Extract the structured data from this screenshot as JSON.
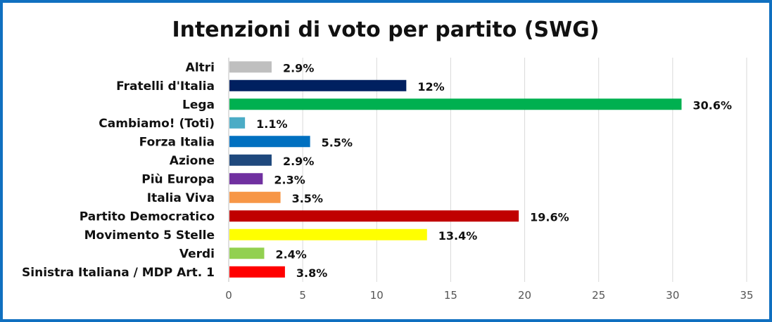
{
  "chart_data": {
    "type": "bar",
    "orientation": "horizontal",
    "title": "Intenzioni di voto per partito (SWG)",
    "xlabel": "",
    "ylabel": "",
    "categories": [
      "Altri",
      "Fratelli d'Italia",
      "Lega",
      "Cambiamo! (Toti)",
      "Forza Italia",
      "Azione",
      "Più Europa",
      "Italia Viva",
      "Partito Democratico",
      "Movimento 5 Stelle",
      "Verdi",
      "Sinistra Italiana / MDP Art. 1"
    ],
    "values": [
      2.9,
      12,
      30.6,
      1.1,
      5.5,
      2.9,
      2.3,
      3.5,
      19.6,
      13.4,
      2.4,
      3.8
    ],
    "value_labels": [
      "2.9%",
      "12%",
      "30.6%",
      "1.1%",
      "5.5%",
      "2.9%",
      "2.3%",
      "3.5%",
      "19.6%",
      "13.4%",
      "2.4%",
      "3.8%"
    ],
    "colors": [
      "#bfbfbf",
      "#002060",
      "#00b050",
      "#4bacc6",
      "#0070c0",
      "#1f497d",
      "#7030a0",
      "#f79646",
      "#c00000",
      "#ffff00",
      "#92d050",
      "#ff0000"
    ],
    "xlim": [
      0,
      35
    ],
    "xticks": [
      0,
      5,
      10,
      15,
      20,
      25,
      30,
      35
    ],
    "grid": true,
    "legend": "none",
    "frame_color": "#1070c0"
  }
}
